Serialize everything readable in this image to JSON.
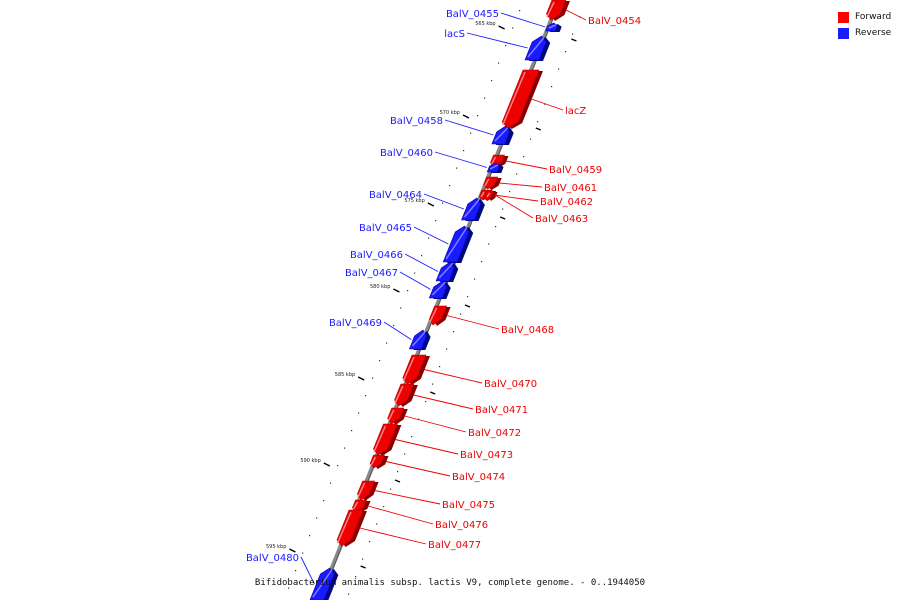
{
  "caption": "Bifidobacterium animalis subsp. lactis V9, complete genome. - 0..1944050",
  "legend": {
    "forward": {
      "label": "Forward",
      "color": "#ff0000"
    },
    "reverse": {
      "label": "Reverse",
      "color": "#1a1aff"
    }
  },
  "colors": {
    "forward": "#ee0000",
    "reverse": "#1a1aff",
    "backbone": "#8a8a8a"
  },
  "ticks": [
    "565 kbp",
    "570 kbp",
    "575 kbp",
    "580 kbp",
    "585 kbp",
    "590 kbp",
    "595 kbp"
  ],
  "genes": [
    {
      "name": "BalV_0454",
      "strand": "forward"
    },
    {
      "name": "BalV_0455",
      "strand": "reverse"
    },
    {
      "name": "lacS",
      "strand": "reverse"
    },
    {
      "name": "lacZ",
      "strand": "forward"
    },
    {
      "name": "BalV_0458",
      "strand": "reverse"
    },
    {
      "name": "BalV_0459",
      "strand": "forward"
    },
    {
      "name": "BalV_0460",
      "strand": "reverse"
    },
    {
      "name": "BalV_0461",
      "strand": "forward"
    },
    {
      "name": "BalV_0462",
      "strand": "forward"
    },
    {
      "name": "BalV_0463",
      "strand": "forward"
    },
    {
      "name": "BalV_0464",
      "strand": "reverse"
    },
    {
      "name": "BalV_0465",
      "strand": "reverse"
    },
    {
      "name": "BalV_0466",
      "strand": "reverse"
    },
    {
      "name": "BalV_0467",
      "strand": "reverse"
    },
    {
      "name": "BalV_0468",
      "strand": "forward"
    },
    {
      "name": "BalV_0469",
      "strand": "reverse"
    },
    {
      "name": "BalV_0470",
      "strand": "forward"
    },
    {
      "name": "BalV_0471",
      "strand": "forward"
    },
    {
      "name": "BalV_0472",
      "strand": "forward"
    },
    {
      "name": "BalV_0473",
      "strand": "forward"
    },
    {
      "name": "BalV_0474",
      "strand": "forward"
    },
    {
      "name": "BalV_0475",
      "strand": "forward"
    },
    {
      "name": "BalV_0476",
      "strand": "forward"
    },
    {
      "name": "BalV_0477",
      "strand": "forward"
    },
    {
      "name": "BalV_0480",
      "strand": "reverse"
    }
  ]
}
